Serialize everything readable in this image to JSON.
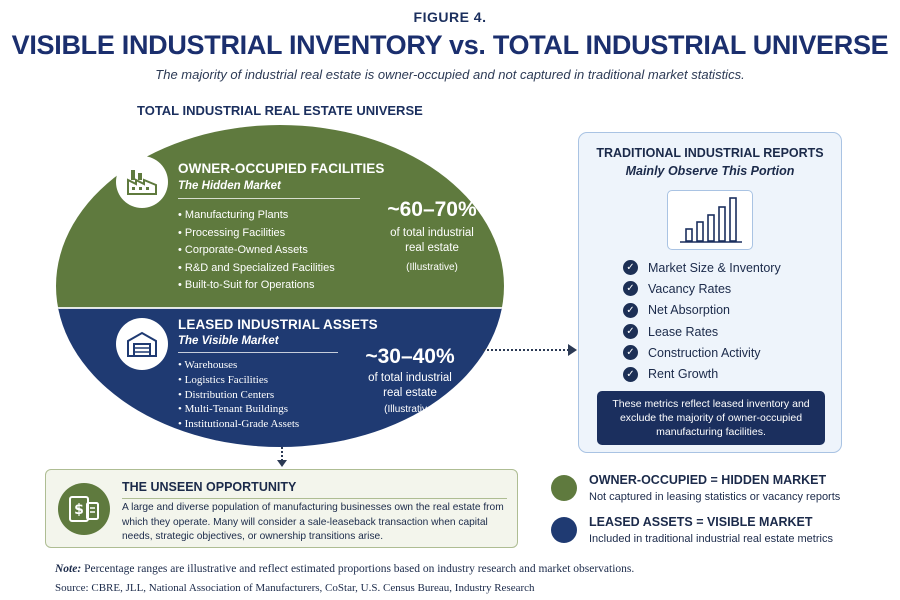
{
  "header": {
    "figure_label": "FIGURE 4.",
    "title": "VISIBLE INDUSTRIAL INVENTORY vs. TOTAL INDUSTRIAL UNIVERSE",
    "subtitle": "The majority of industrial real estate is owner-occupied and not captured in traditional market statistics.",
    "universe_title": "TOTAL INDUSTRIAL REAL ESTATE UNIVERSE"
  },
  "owner_occupied": {
    "title": "OWNER-OCCUPIED FACILITIES",
    "subtitle": "The Hidden Market",
    "items": [
      "Manufacturing Plants",
      "Processing Facilities",
      "Corporate-Owned Assets",
      "R&D and Specialized Facilities",
      "Built-to-Suit for Operations"
    ],
    "percent": "~60–70%",
    "percent_desc_1": "of total industrial",
    "percent_desc_2": "real estate",
    "percent_note": "(Illustrative)",
    "color": "#5f7a3e",
    "icon": "factory-icon",
    "share_range_pct": [
      60,
      70
    ]
  },
  "leased": {
    "title": "LEASED INDUSTRIAL ASSETS",
    "subtitle": "The Visible Market",
    "items": [
      "Warehouses",
      "Logistics Facilities",
      "Distribution Centers",
      "Multi-Tenant Buildings",
      "Institutional-Grade Assets"
    ],
    "percent": "~30–40%",
    "percent_desc_1": "of total industrial",
    "percent_desc_2": "real estate",
    "percent_note": "(Illustrative)",
    "color": "#1f3a72",
    "icon": "warehouse-icon",
    "share_range_pct": [
      30,
      40
    ]
  },
  "reports_panel": {
    "title": "TRADITIONAL INDUSTRIAL REPORTS",
    "subtitle": "Mainly Observe This Portion",
    "icon": "bar-chart-icon",
    "metrics": [
      "Market Size & Inventory",
      "Vacancy Rates",
      "Net Absorption",
      "Lease Rates",
      "Construction Activity",
      "Rent Growth"
    ],
    "note": "These metrics reflect leased inventory and exclude the majority of owner-occupied manufacturing facilities."
  },
  "opportunity": {
    "title": "THE UNSEEN OPPORTUNITY",
    "icon": "document-dollar-icon",
    "text": "A large and diverse population of manufacturing businesses own the real estate from which they operate. Many will consider a sale-leaseback transaction when capital needs, strategic objectives, or ownership transitions arise."
  },
  "legend": [
    {
      "title": "OWNER-OCCUPIED = HIDDEN MARKET",
      "desc": "Not captured in leasing statistics or vacancy reports",
      "color": "#5f7a3e"
    },
    {
      "title": "LEASED ASSETS = VISIBLE MARKET",
      "desc": "Included in traditional industrial real estate metrics",
      "color": "#1f3a72"
    }
  ],
  "footer": {
    "note_label": "Note:",
    "note_text": " Percentage ranges are illustrative and reflect estimated proportions based on industry research and market observations.",
    "source": "Source: CBRE, JLL, National Association of Manufacturers, CoStar, U.S. Census Bureau, Industry Research"
  }
}
